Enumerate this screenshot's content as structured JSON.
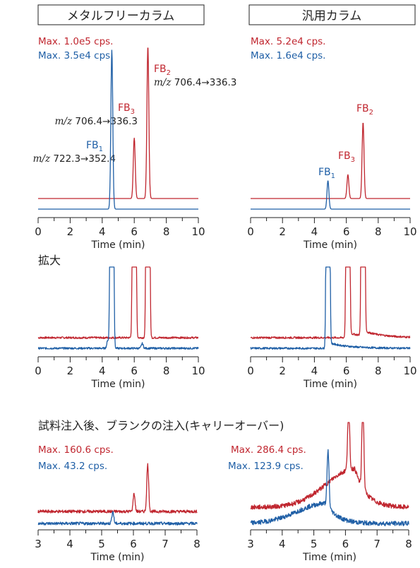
{
  "colors": {
    "red": "#c0262f",
    "blue": "#1f5fa6",
    "axis": "#222222",
    "text": "#222222"
  },
  "headers": {
    "left": "メタルフリーカラム",
    "right": "汎用カラム"
  },
  "section_titles": {
    "zoom": "拡大",
    "blank": "試料注入後、ブランクの注入(キャリーオーバー)"
  },
  "annotations": {
    "fb1": {
      "base": "FB",
      "sub": "1"
    },
    "fb2": {
      "base": "FB",
      "sub": "2"
    },
    "fb3": {
      "base": "FB",
      "sub": "3"
    },
    "mz_prefix": "m/z",
    "mz_fb2": "706.4→336.3",
    "mz_fb3": "706.4→336.3",
    "mz_fb1": "722.3→352.4"
  },
  "chart_data": [
    {
      "id": "top-left",
      "type": "line",
      "column": "メタルフリーカラム",
      "xlabel": "Time (min)",
      "xlim": [
        0,
        10
      ],
      "xticks": [
        0,
        2,
        4,
        6,
        8,
        10
      ],
      "max_labels": {
        "red": "Max. 1.0e5 cps.",
        "blue": "Max. 3.5e4 cps."
      },
      "series": [
        {
          "color": "red",
          "baseline": 0,
          "peaks": [
            [
              6.0,
              0.38
            ],
            [
              6.85,
              0.96
            ]
          ]
        },
        {
          "color": "blue",
          "baseline": 0,
          "peaks": [
            [
              4.6,
              1.0
            ]
          ]
        }
      ]
    },
    {
      "id": "top-right",
      "type": "line",
      "column": "汎用カラム",
      "xlabel": "Time (min)",
      "xlim": [
        0,
        10
      ],
      "xticks": [
        0,
        2,
        4,
        6,
        8,
        10
      ],
      "max_labels": {
        "red": "Max. 5.2e4 cps.",
        "blue": "Max. 1.6e4 cps."
      },
      "series": [
        {
          "color": "red",
          "baseline": 0,
          "peaks": [
            [
              6.1,
              0.15
            ],
            [
              7.05,
              0.48
            ]
          ]
        },
        {
          "color": "blue",
          "baseline": 0,
          "peaks": [
            [
              4.85,
              0.18
            ]
          ]
        }
      ]
    },
    {
      "id": "zoom-left",
      "type": "line",
      "column": "メタルフリーカラム",
      "title": "拡大",
      "xlabel": "Time (min)",
      "xlim": [
        0,
        10
      ],
      "xticks": [
        0,
        2,
        4,
        6,
        8,
        10
      ],
      "series": [
        {
          "color": "red",
          "baseline": 0,
          "peaks": [
            [
              6.0,
              10
            ],
            [
              6.85,
              10
            ]
          ]
        },
        {
          "color": "blue",
          "baseline": 0,
          "peaks": [
            [
              4.6,
              10
            ],
            [
              4.35,
              0.05
            ],
            [
              6.5,
              0.03
            ]
          ]
        }
      ]
    },
    {
      "id": "zoom-right",
      "type": "line",
      "column": "汎用カラム",
      "xlabel": "Time (min)",
      "xlim": [
        0,
        10
      ],
      "xticks": [
        0,
        2,
        4,
        6,
        8,
        10
      ],
      "series": [
        {
          "color": "red",
          "baseline": 0,
          "peaks": [
            [
              6.1,
              10
            ],
            [
              7.05,
              10
            ]
          ],
          "tail": 0.25
        },
        {
          "color": "blue",
          "baseline": 0,
          "peaks": [
            [
              4.85,
              10
            ]
          ],
          "tail": 0.3
        }
      ]
    },
    {
      "id": "blank-left",
      "type": "line",
      "column": "メタルフリーカラム",
      "title": "試料注入後、ブランクの注入(キャリーオーバー)",
      "xlabel": "Time (min)",
      "xlim": [
        3,
        8
      ],
      "xticks": [
        3,
        4,
        5,
        6,
        7,
        8
      ],
      "max_labels": {
        "red": "Max. 160.6 cps.",
        "blue": "Max. 43.2 cps."
      },
      "series": [
        {
          "color": "red",
          "baseline": 0,
          "peaks": [
            [
              6.02,
              0.3
            ],
            [
              6.45,
              0.78
            ]
          ]
        },
        {
          "color": "blue",
          "baseline": 0,
          "peaks": [
            [
              5.35,
              0.2
            ]
          ]
        }
      ]
    },
    {
      "id": "blank-right",
      "type": "line",
      "column": "汎用カラム",
      "xlabel": "Time (min)",
      "xlim": [
        3,
        8
      ],
      "xticks": [
        3,
        4,
        5,
        6,
        7,
        8
      ],
      "max_labels": {
        "red": "Max. 286.4 cps.",
        "blue": "Max. 123.9 cps."
      },
      "series": [
        {
          "color": "red",
          "baseline": 0,
          "peaks": [
            [
              6.1,
              0.75
            ],
            [
              6.55,
              1.0
            ]
          ],
          "hump": [
            6.3,
            0.42
          ]
        },
        {
          "color": "blue",
          "baseline": 0,
          "peaks": [
            [
              5.45,
              0.6
            ]
          ],
          "hump": [
            5.4,
            0.22
          ]
        }
      ]
    }
  ]
}
